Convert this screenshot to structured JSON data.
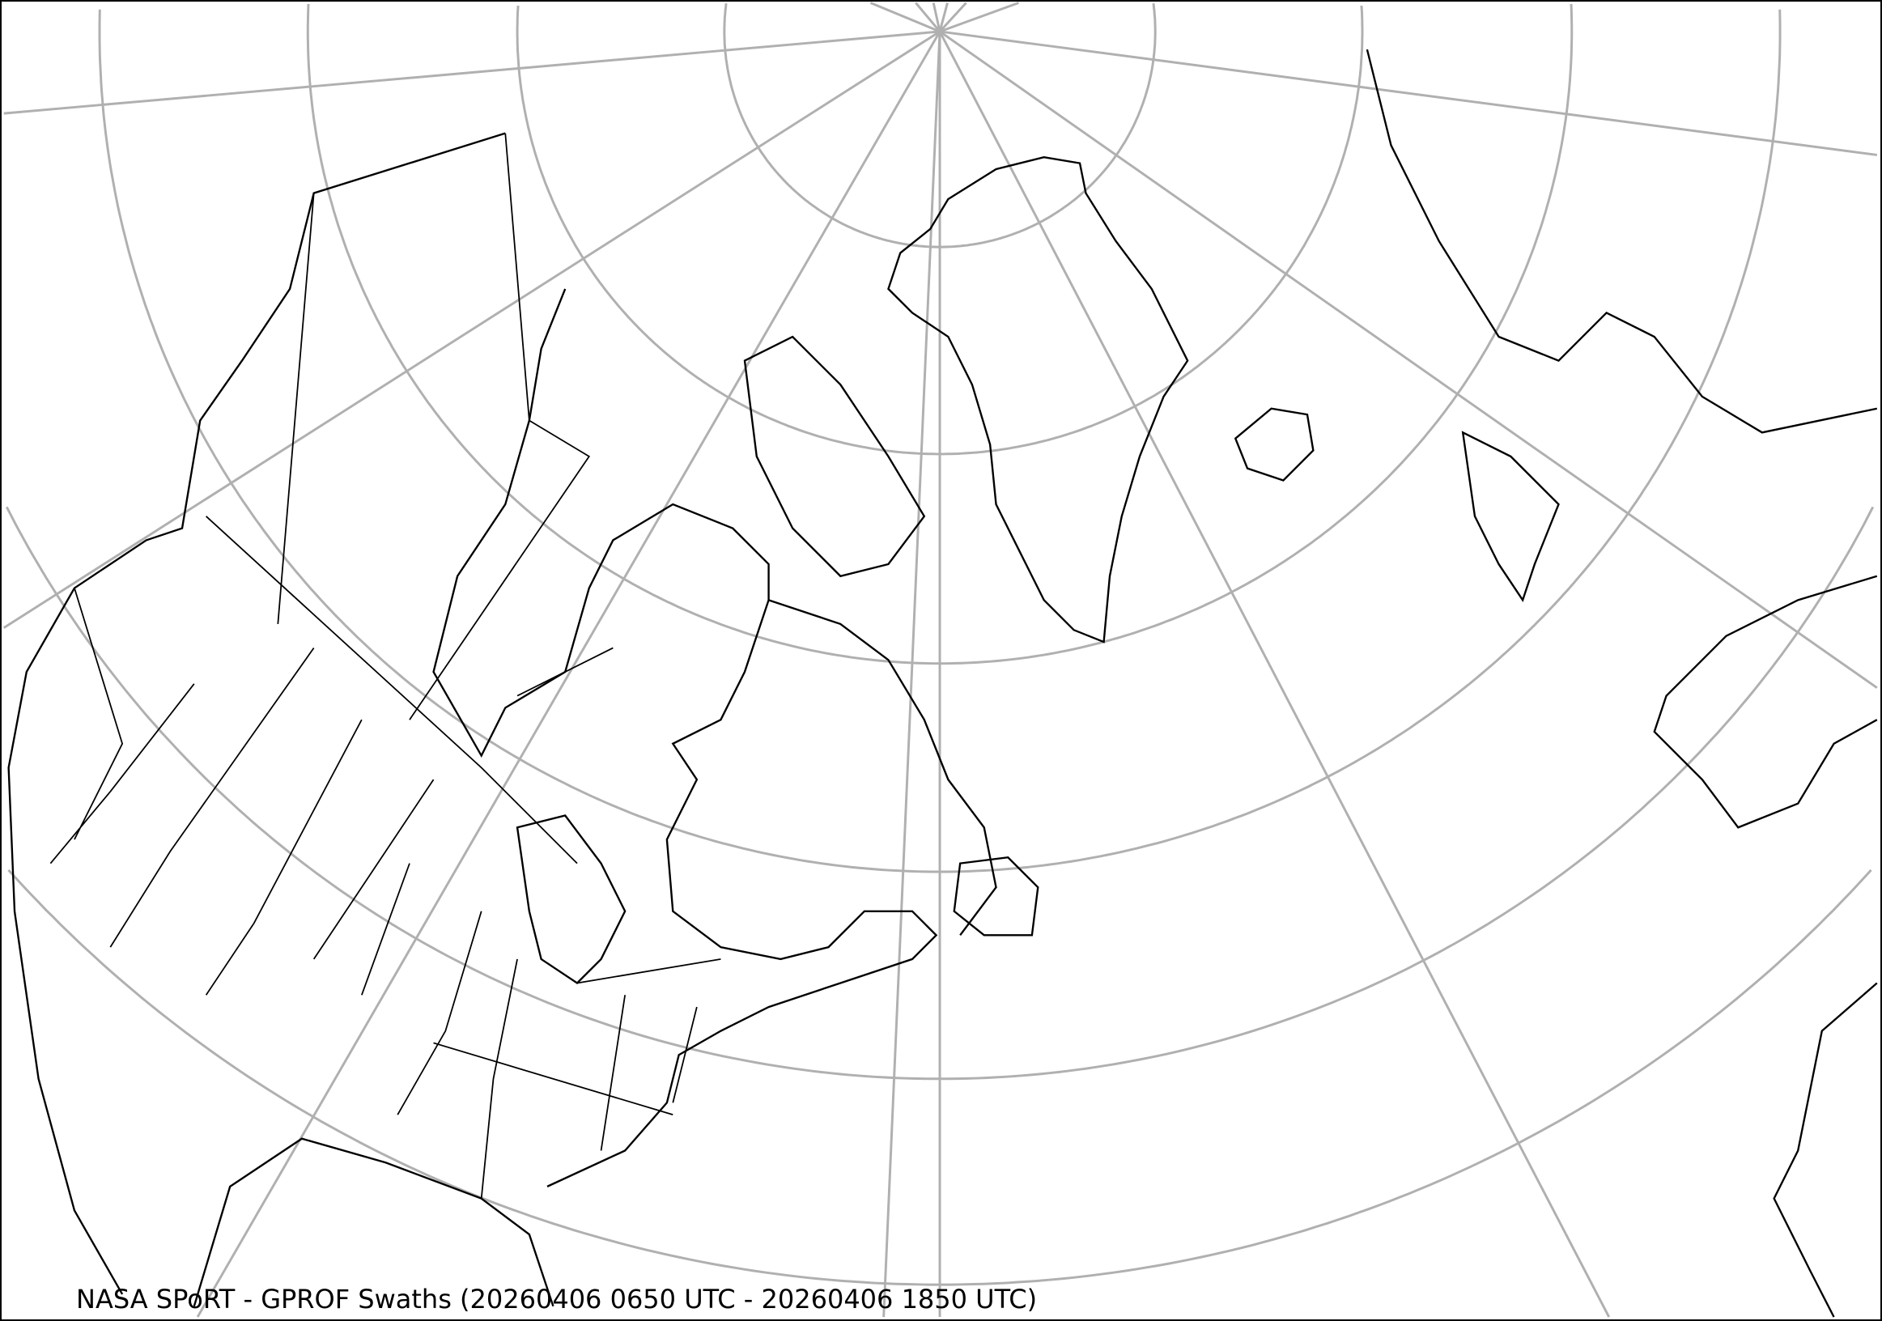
{
  "title": "NASA SPoRT - GPROF Swaths (20260406 0650 UTC - 20260406 1850 UTC)",
  "colors": {
    "graticule": "#b0b0b0",
    "coastline": "#000000",
    "background": "#ffffff"
  },
  "map": {
    "projection": "north polar conic",
    "layers": [
      "coastlines",
      "country borders",
      "state/province borders",
      "graticule"
    ]
  }
}
